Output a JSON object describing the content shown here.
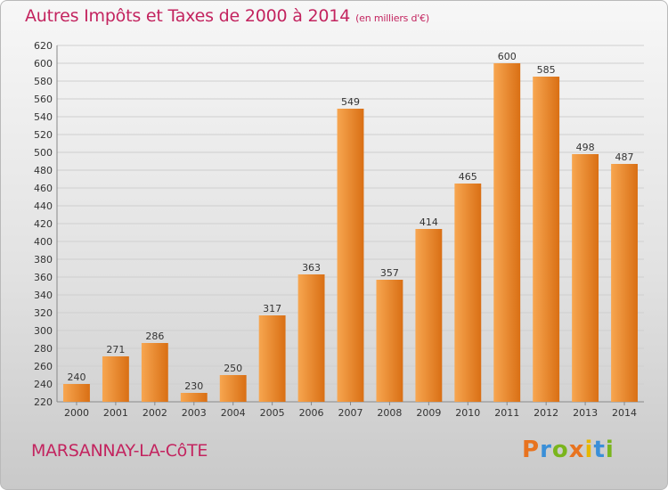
{
  "title": "Autres Impôts et Taxes de 2000 à 2014",
  "subtitle": "(en milliers d'€)",
  "commune": "MARSANNAY-LA-CôTE",
  "logo": {
    "letters": [
      "P",
      "r",
      "o",
      "x",
      "i",
      "t",
      "i"
    ],
    "colors": [
      "#e8731f",
      "#3a8fd8",
      "#7ab51d",
      "#e8731f",
      "#e6b800",
      "#3a8fd8",
      "#7ab51d"
    ]
  },
  "colors": {
    "bar_light": "#f7a650",
    "bar_dark": "#d96f14",
    "title": "#c3245f"
  },
  "chart_data": {
    "type": "bar",
    "categories": [
      "2000",
      "2001",
      "2002",
      "2003",
      "2004",
      "2005",
      "2006",
      "2007",
      "2008",
      "2009",
      "2010",
      "2011",
      "2012",
      "2013",
      "2014"
    ],
    "values": [
      240,
      271,
      286,
      230,
      250,
      317,
      363,
      549,
      357,
      414,
      465,
      600,
      585,
      498,
      487
    ],
    "title": "Autres Impôts et Taxes de 2000 à 2014",
    "subtitle": "(en milliers d'€)",
    "xlabel": "",
    "ylabel": "",
    "ylim": [
      220,
      620
    ],
    "yticks": [
      220,
      240,
      260,
      280,
      300,
      320,
      340,
      360,
      380,
      400,
      420,
      440,
      460,
      480,
      500,
      520,
      540,
      560,
      580,
      600,
      620
    ],
    "grid": true,
    "data_labels": true
  }
}
